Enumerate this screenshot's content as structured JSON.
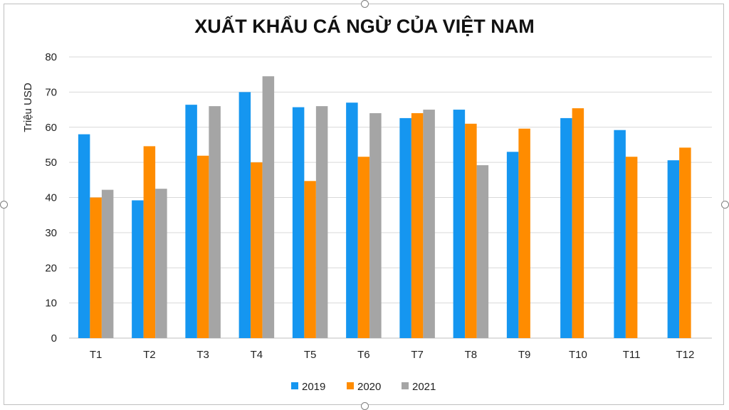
{
  "chart_data": {
    "type": "bar",
    "title": "XUẤT KHẨU CÁ NGỪ CỦA VIỆT NAM",
    "ylabel": "Triệu USD",
    "xlabel": "",
    "ylim": [
      0,
      80
    ],
    "yticks": [
      0,
      10,
      20,
      30,
      40,
      50,
      60,
      70,
      80
    ],
    "grid": true,
    "legend_position": "bottom",
    "categories": [
      "T1",
      "T2",
      "T3",
      "T4",
      "T5",
      "T6",
      "T7",
      "T8",
      "T9",
      "T10",
      "T11",
      "T12"
    ],
    "series": [
      {
        "name": "2019",
        "color": "#1596f0",
        "values": [
          58,
          39.2,
          66.4,
          70,
          65.7,
          67,
          62.6,
          65,
          53,
          62.6,
          59.2,
          50.6
        ]
      },
      {
        "name": "2020",
        "color": "#ff8c00",
        "values": [
          40,
          54.6,
          51.9,
          50,
          44.7,
          51.6,
          64,
          61,
          59.6,
          65.4,
          51.6,
          54.2
        ]
      },
      {
        "name": "2021",
        "color": "#a5a5a5",
        "values": [
          42.2,
          42.5,
          66,
          74.5,
          66,
          64,
          65,
          49.2,
          null,
          null,
          null,
          null
        ]
      }
    ]
  }
}
